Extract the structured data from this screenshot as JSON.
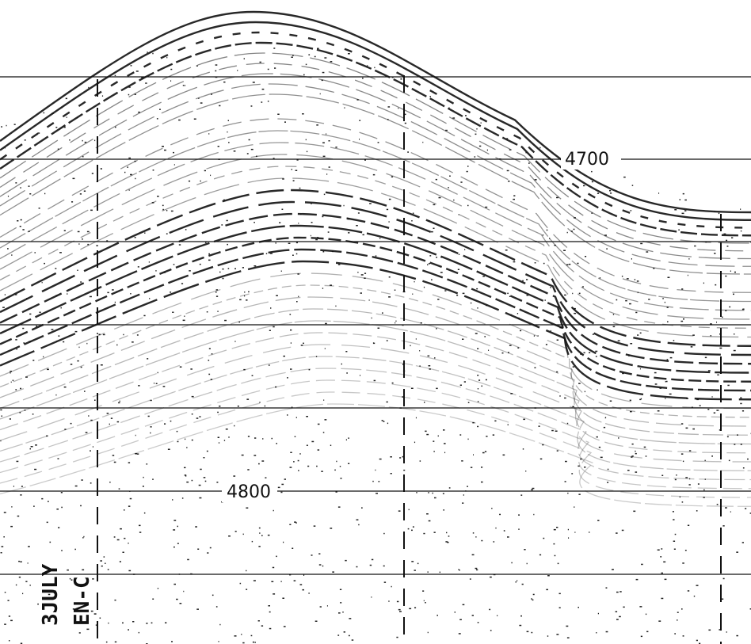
{
  "labels": {
    "upper": "4700",
    "lower": "4800"
  },
  "annotations": {
    "date": "3JULY",
    "code": "EN-C"
  }
}
